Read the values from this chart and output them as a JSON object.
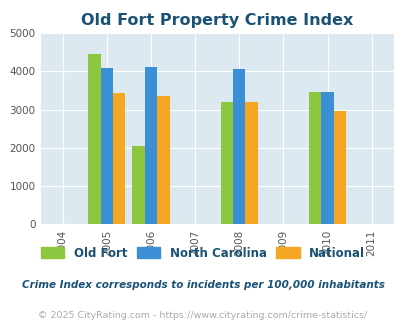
{
  "title": "Old Fort Property Crime Index",
  "years": [
    2005,
    2006,
    2008,
    2010
  ],
  "old_fort": [
    4450,
    2050,
    3200,
    3450
  ],
  "north_carolina": [
    4080,
    4100,
    4050,
    3450
  ],
  "national": [
    3440,
    3350,
    3200,
    2960
  ],
  "bar_colors": {
    "old_fort": "#8dc63f",
    "north_carolina": "#3b8fd4",
    "national": "#f5a623"
  },
  "xtick_labels": [
    "2004",
    "2005",
    "2006",
    "2007",
    "2008",
    "2009",
    "2010",
    "2011"
  ],
  "xtick_positions": [
    2004,
    2005,
    2006,
    2007,
    2008,
    2009,
    2010,
    2011
  ],
  "ytick_labels": [
    "0",
    "1000",
    "2000",
    "3000",
    "4000",
    "5000"
  ],
  "ytick_positions": [
    0,
    1000,
    2000,
    3000,
    4000,
    5000
  ],
  "ylim": [
    0,
    5000
  ],
  "xlim": [
    2003.5,
    2011.5
  ],
  "background_color": "#dce9f0",
  "title_color": "#1a5276",
  "legend_labels": [
    "Old Fort",
    "North Carolina",
    "National"
  ],
  "legend_colors": [
    "#8dc63f",
    "#3b8fd4",
    "#f5a623"
  ],
  "footnote1": "Crime Index corresponds to incidents per 100,000 inhabitants",
  "footnote2": "© 2025 CityRating.com - https://www.cityrating.com/crime-statistics/",
  "bar_width": 0.28
}
